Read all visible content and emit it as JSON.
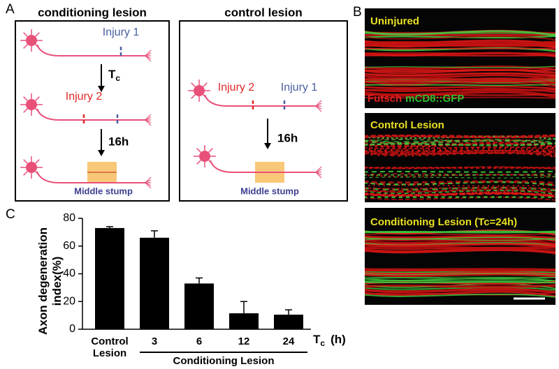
{
  "panel_a": {
    "label": "A",
    "conditioning": {
      "title": "conditioning lesion",
      "injury1": "Injury 1",
      "tc": {
        "main": "T",
        "sub": "c"
      },
      "injury2": "Injury 2",
      "time": "16h",
      "stump": "Middle stump"
    },
    "control": {
      "title": "control lesion",
      "injury2": "Injury 2",
      "injury1": "Injury 1",
      "time": "16h",
      "stump": "Middle stump"
    }
  },
  "panel_b": {
    "label": "B",
    "images": [
      {
        "label": "Uninjured"
      },
      {
        "label": "Control Lesion"
      },
      {
        "label": "Conditioning Lesion (Tc=24h)"
      }
    ],
    "stain_1": "Futsch",
    "stain_2": "mCD8::GFP"
  },
  "chart_data": {
    "type": "bar",
    "panel_label": "C",
    "y_label": "Axon degeneration index(%)",
    "x_label": {
      "main": "T",
      "sub": "c",
      "unit": "(h)"
    },
    "group_label": "Conditioning Lesion",
    "categories": [
      "Control Lesion",
      "3",
      "6",
      "12",
      "24"
    ],
    "values": [
      73,
      66,
      33,
      11.5,
      10.5
    ],
    "errors": [
      1,
      5,
      4,
      8.5,
      3.5
    ],
    "color": "#000000",
    "ylim": [
      0,
      80
    ],
    "yticks": [
      0,
      20,
      40,
      60,
      80
    ]
  }
}
